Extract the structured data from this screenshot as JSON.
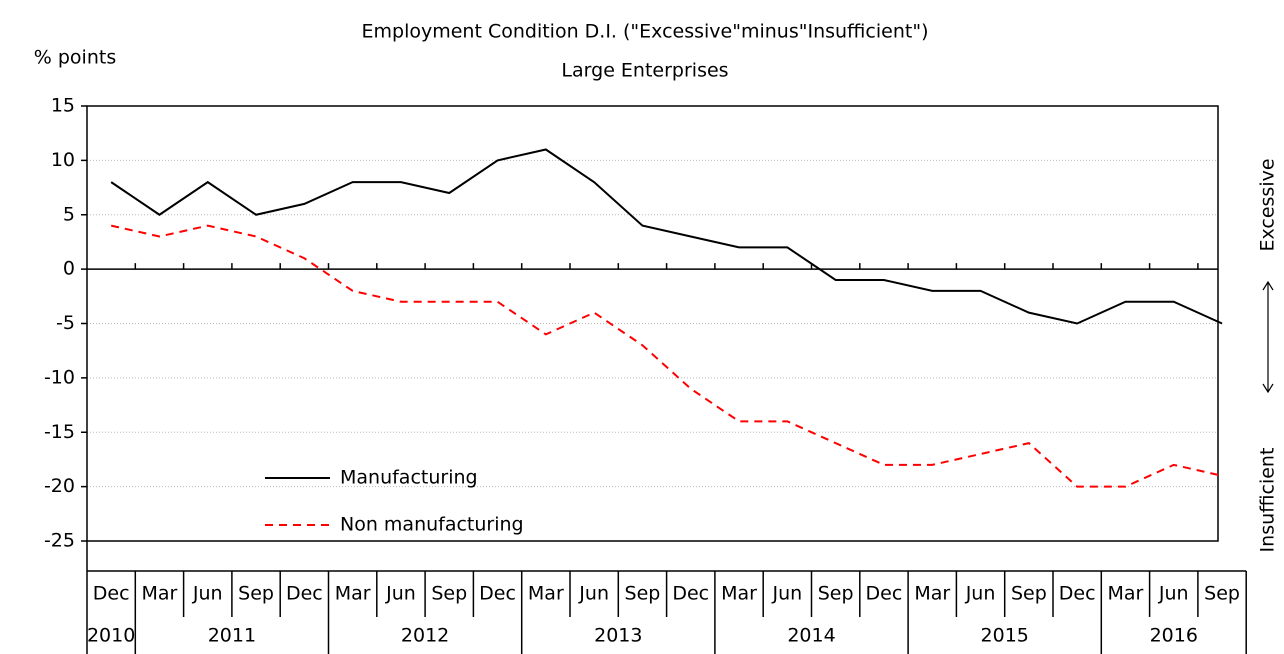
{
  "chart_data": {
    "type": "line",
    "title": "Employment Condition D.I.  (\"Excessive\"minus\"Insufficient\")",
    "subtitle": "Large Enterprises",
    "y_label": "% points",
    "right_label_top": "Excessive",
    "right_label_bottom": "Insufficient",
    "categories": [
      "Dec",
      "Mar",
      "Jun",
      "Sep",
      "Dec",
      "Mar",
      "Jun",
      "Sep",
      "Dec",
      "Mar",
      "Jun",
      "Sep",
      "Dec",
      "Mar",
      "Jun",
      "Sep",
      "Dec",
      "Mar",
      "Jun",
      "Sep",
      "Dec",
      "Mar",
      "Jun",
      "Sep"
    ],
    "years": [
      "2010",
      "2011",
      "2012",
      "2013",
      "2014",
      "2015",
      "2016"
    ],
    "series": [
      {
        "name": "Manufacturing",
        "color": "#000000",
        "dash": false,
        "values": [
          8,
          5,
          8,
          5,
          6,
          8,
          8,
          7,
          10,
          11,
          8,
          4,
          3,
          2,
          2,
          -1,
          -1,
          -2,
          -2,
          -4,
          -5,
          -3,
          -3,
          -5
        ]
      },
      {
        "name": "Non manufacturing",
        "color": "#ff0000",
        "dash": true,
        "values": [
          4,
          3,
          4,
          3,
          1,
          -2,
          -3,
          -3,
          -3,
          -6,
          -4,
          -7,
          -11,
          -14,
          -14,
          -16,
          -18,
          -18,
          -17,
          -16,
          -20,
          -20,
          -18,
          -19
        ]
      }
    ],
    "ylim": [
      -25,
      15
    ],
    "yticks": [
      -25,
      -20,
      -15,
      -10,
      -5,
      0,
      5,
      10,
      15
    ],
    "grid": true
  }
}
